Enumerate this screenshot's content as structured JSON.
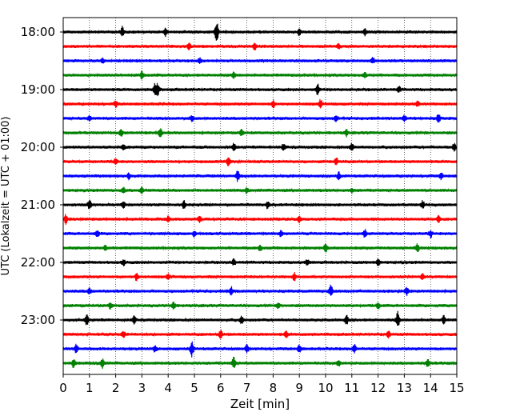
{
  "chart_data": {
    "type": "line",
    "title": "",
    "xlabel": "Zeit  [min]",
    "ylabel": "UTC (Lokalzeit = UTC + 01:00)",
    "xlim": [
      0,
      15
    ],
    "x_ticks": [
      0,
      1,
      2,
      3,
      4,
      5,
      6,
      7,
      8,
      9,
      10,
      11,
      12,
      13,
      14,
      15
    ],
    "x_tick_labels": [
      "0",
      "1",
      "2",
      "3",
      "4",
      "5",
      "6",
      "7",
      "8",
      "9",
      "10",
      "11",
      "12",
      "13",
      "14",
      "15"
    ],
    "x_grid": "dotted vertical lines at each minute",
    "y_tick_labels": [
      "18:00",
      "19:00",
      "20:00",
      "21:00",
      "22:00",
      "23:00"
    ],
    "trace_colors": [
      "#000000",
      "#ff0000",
      "#0000ff",
      "#008000"
    ],
    "traces": [
      {
        "start": "18:00",
        "color": "#000000",
        "events": [
          {
            "t": 2.25,
            "amp": 0.35
          },
          {
            "t": 3.9,
            "amp": 0.25
          },
          {
            "t": 5.85,
            "amp": 0.75
          },
          {
            "t": 9.0,
            "amp": 0.2
          },
          {
            "t": 11.5,
            "amp": 0.2
          }
        ]
      },
      {
        "start": "18:15",
        "color": "#ff0000",
        "events": [
          {
            "t": 4.8,
            "amp": 0.2
          },
          {
            "t": 7.3,
            "amp": 0.25
          },
          {
            "t": 10.5,
            "amp": 0.2
          }
        ]
      },
      {
        "start": "18:30",
        "color": "#0000ff",
        "events": [
          {
            "t": 1.5,
            "amp": 0.15
          },
          {
            "t": 5.2,
            "amp": 0.2
          },
          {
            "t": 11.8,
            "amp": 0.2
          }
        ]
      },
      {
        "start": "18:45",
        "color": "#008000",
        "events": [
          {
            "t": 3.0,
            "amp": 0.25
          },
          {
            "t": 6.5,
            "amp": 0.2
          },
          {
            "t": 11.5,
            "amp": 0.2
          }
        ]
      },
      {
        "start": "19:00",
        "color": "#000000",
        "events": [
          {
            "t": 3.5,
            "amp": 0.4
          },
          {
            "t": 3.6,
            "amp": 0.35
          },
          {
            "t": 9.7,
            "amp": 0.35
          },
          {
            "t": 12.8,
            "amp": 0.2
          }
        ]
      },
      {
        "start": "19:15",
        "color": "#ff0000",
        "events": [
          {
            "t": 2.0,
            "amp": 0.2
          },
          {
            "t": 8.0,
            "amp": 0.25
          },
          {
            "t": 9.8,
            "amp": 0.3
          },
          {
            "t": 13.5,
            "amp": 0.2
          }
        ]
      },
      {
        "start": "19:30",
        "color": "#0000ff",
        "events": [
          {
            "t": 1.0,
            "amp": 0.15
          },
          {
            "t": 4.9,
            "amp": 0.2
          },
          {
            "t": 10.4,
            "amp": 0.2
          },
          {
            "t": 13.0,
            "amp": 0.2
          },
          {
            "t": 14.3,
            "amp": 0.3
          }
        ]
      },
      {
        "start": "19:45",
        "color": "#008000",
        "events": [
          {
            "t": 2.2,
            "amp": 0.25
          },
          {
            "t": 3.7,
            "amp": 0.3
          },
          {
            "t": 6.8,
            "amp": 0.2
          },
          {
            "t": 10.8,
            "amp": 0.2
          }
        ]
      },
      {
        "start": "20:00",
        "color": "#000000",
        "events": [
          {
            "t": 2.3,
            "amp": 0.2
          },
          {
            "t": 6.5,
            "amp": 0.25
          },
          {
            "t": 8.4,
            "amp": 0.2
          },
          {
            "t": 11.0,
            "amp": 0.25
          },
          {
            "t": 14.9,
            "amp": 0.25
          }
        ]
      },
      {
        "start": "20:15",
        "color": "#ff0000",
        "events": [
          {
            "t": 2.0,
            "amp": 0.2
          },
          {
            "t": 6.3,
            "amp": 0.35
          },
          {
            "t": 10.4,
            "amp": 0.25
          }
        ]
      },
      {
        "start": "20:30",
        "color": "#0000ff",
        "events": [
          {
            "t": 2.5,
            "amp": 0.2
          },
          {
            "t": 6.65,
            "amp": 0.35
          },
          {
            "t": 10.5,
            "amp": 0.25
          },
          {
            "t": 14.4,
            "amp": 0.2
          }
        ]
      },
      {
        "start": "20:45",
        "color": "#008000",
        "events": [
          {
            "t": 2.3,
            "amp": 0.2
          },
          {
            "t": 3.0,
            "amp": 0.2
          },
          {
            "t": 7.0,
            "amp": 0.2
          },
          {
            "t": 11.0,
            "amp": 0.15
          }
        ]
      },
      {
        "start": "21:00",
        "color": "#000000",
        "events": [
          {
            "t": 1.0,
            "amp": 0.35
          },
          {
            "t": 2.3,
            "amp": 0.2
          },
          {
            "t": 4.6,
            "amp": 0.25
          },
          {
            "t": 7.8,
            "amp": 0.25
          },
          {
            "t": 13.7,
            "amp": 0.25
          }
        ]
      },
      {
        "start": "21:15",
        "color": "#ff0000",
        "events": [
          {
            "t": 0.1,
            "amp": 0.3
          },
          {
            "t": 4.0,
            "amp": 0.2
          },
          {
            "t": 5.2,
            "amp": 0.2
          },
          {
            "t": 9.0,
            "amp": 0.2
          },
          {
            "t": 14.3,
            "amp": 0.25
          }
        ]
      },
      {
        "start": "21:30",
        "color": "#0000ff",
        "events": [
          {
            "t": 1.3,
            "amp": 0.2
          },
          {
            "t": 5.0,
            "amp": 0.2
          },
          {
            "t": 8.3,
            "amp": 0.2
          },
          {
            "t": 11.5,
            "amp": 0.25
          },
          {
            "t": 14.0,
            "amp": 0.25
          }
        ]
      },
      {
        "start": "21:45",
        "color": "#008000",
        "events": [
          {
            "t": 1.6,
            "amp": 0.2
          },
          {
            "t": 7.5,
            "amp": 0.2
          },
          {
            "t": 10.0,
            "amp": 0.3
          },
          {
            "t": 13.5,
            "amp": 0.25
          }
        ]
      },
      {
        "start": "22:00",
        "color": "#000000",
        "events": [
          {
            "t": 2.3,
            "amp": 0.2
          },
          {
            "t": 6.5,
            "amp": 0.2
          },
          {
            "t": 9.3,
            "amp": 0.2
          },
          {
            "t": 12.0,
            "amp": 0.2
          }
        ]
      },
      {
        "start": "22:15",
        "color": "#ff0000",
        "events": [
          {
            "t": 2.8,
            "amp": 0.25
          },
          {
            "t": 4.0,
            "amp": 0.2
          },
          {
            "t": 8.8,
            "amp": 0.25
          },
          {
            "t": 13.7,
            "amp": 0.2
          }
        ]
      },
      {
        "start": "22:30",
        "color": "#0000ff",
        "events": [
          {
            "t": 1.0,
            "amp": 0.2
          },
          {
            "t": 6.4,
            "amp": 0.25
          },
          {
            "t": 10.2,
            "amp": 0.4
          },
          {
            "t": 13.1,
            "amp": 0.25
          }
        ]
      },
      {
        "start": "22:45",
        "color": "#008000",
        "events": [
          {
            "t": 1.8,
            "amp": 0.2
          },
          {
            "t": 4.2,
            "amp": 0.25
          },
          {
            "t": 8.2,
            "amp": 0.2
          },
          {
            "t": 12.0,
            "amp": 0.2
          }
        ]
      },
      {
        "start": "23:00",
        "color": "#000000",
        "events": [
          {
            "t": 0.9,
            "amp": 0.35
          },
          {
            "t": 2.7,
            "amp": 0.25
          },
          {
            "t": 6.8,
            "amp": 0.25
          },
          {
            "t": 10.8,
            "amp": 0.3
          },
          {
            "t": 12.75,
            "amp": 0.55
          },
          {
            "t": 14.5,
            "amp": 0.25
          }
        ]
      },
      {
        "start": "23:15",
        "color": "#ff0000",
        "events": [
          {
            "t": 2.3,
            "amp": 0.2
          },
          {
            "t": 6.0,
            "amp": 0.3
          },
          {
            "t": 8.5,
            "amp": 0.2
          },
          {
            "t": 12.4,
            "amp": 0.2
          }
        ]
      },
      {
        "start": "23:30",
        "color": "#0000ff",
        "events": [
          {
            "t": 0.5,
            "amp": 0.3
          },
          {
            "t": 3.5,
            "amp": 0.2
          },
          {
            "t": 4.9,
            "amp": 0.5
          },
          {
            "t": 7.0,
            "amp": 0.25
          },
          {
            "t": 9.0,
            "amp": 0.25
          },
          {
            "t": 11.1,
            "amp": 0.3
          }
        ]
      },
      {
        "start": "23:45",
        "color": "#008000",
        "events": [
          {
            "t": 0.4,
            "amp": 0.3
          },
          {
            "t": 1.5,
            "amp": 0.35
          },
          {
            "t": 6.5,
            "amp": 0.4
          },
          {
            "t": 10.5,
            "amp": 0.2
          },
          {
            "t": 13.9,
            "amp": 0.25
          }
        ]
      }
    ]
  }
}
